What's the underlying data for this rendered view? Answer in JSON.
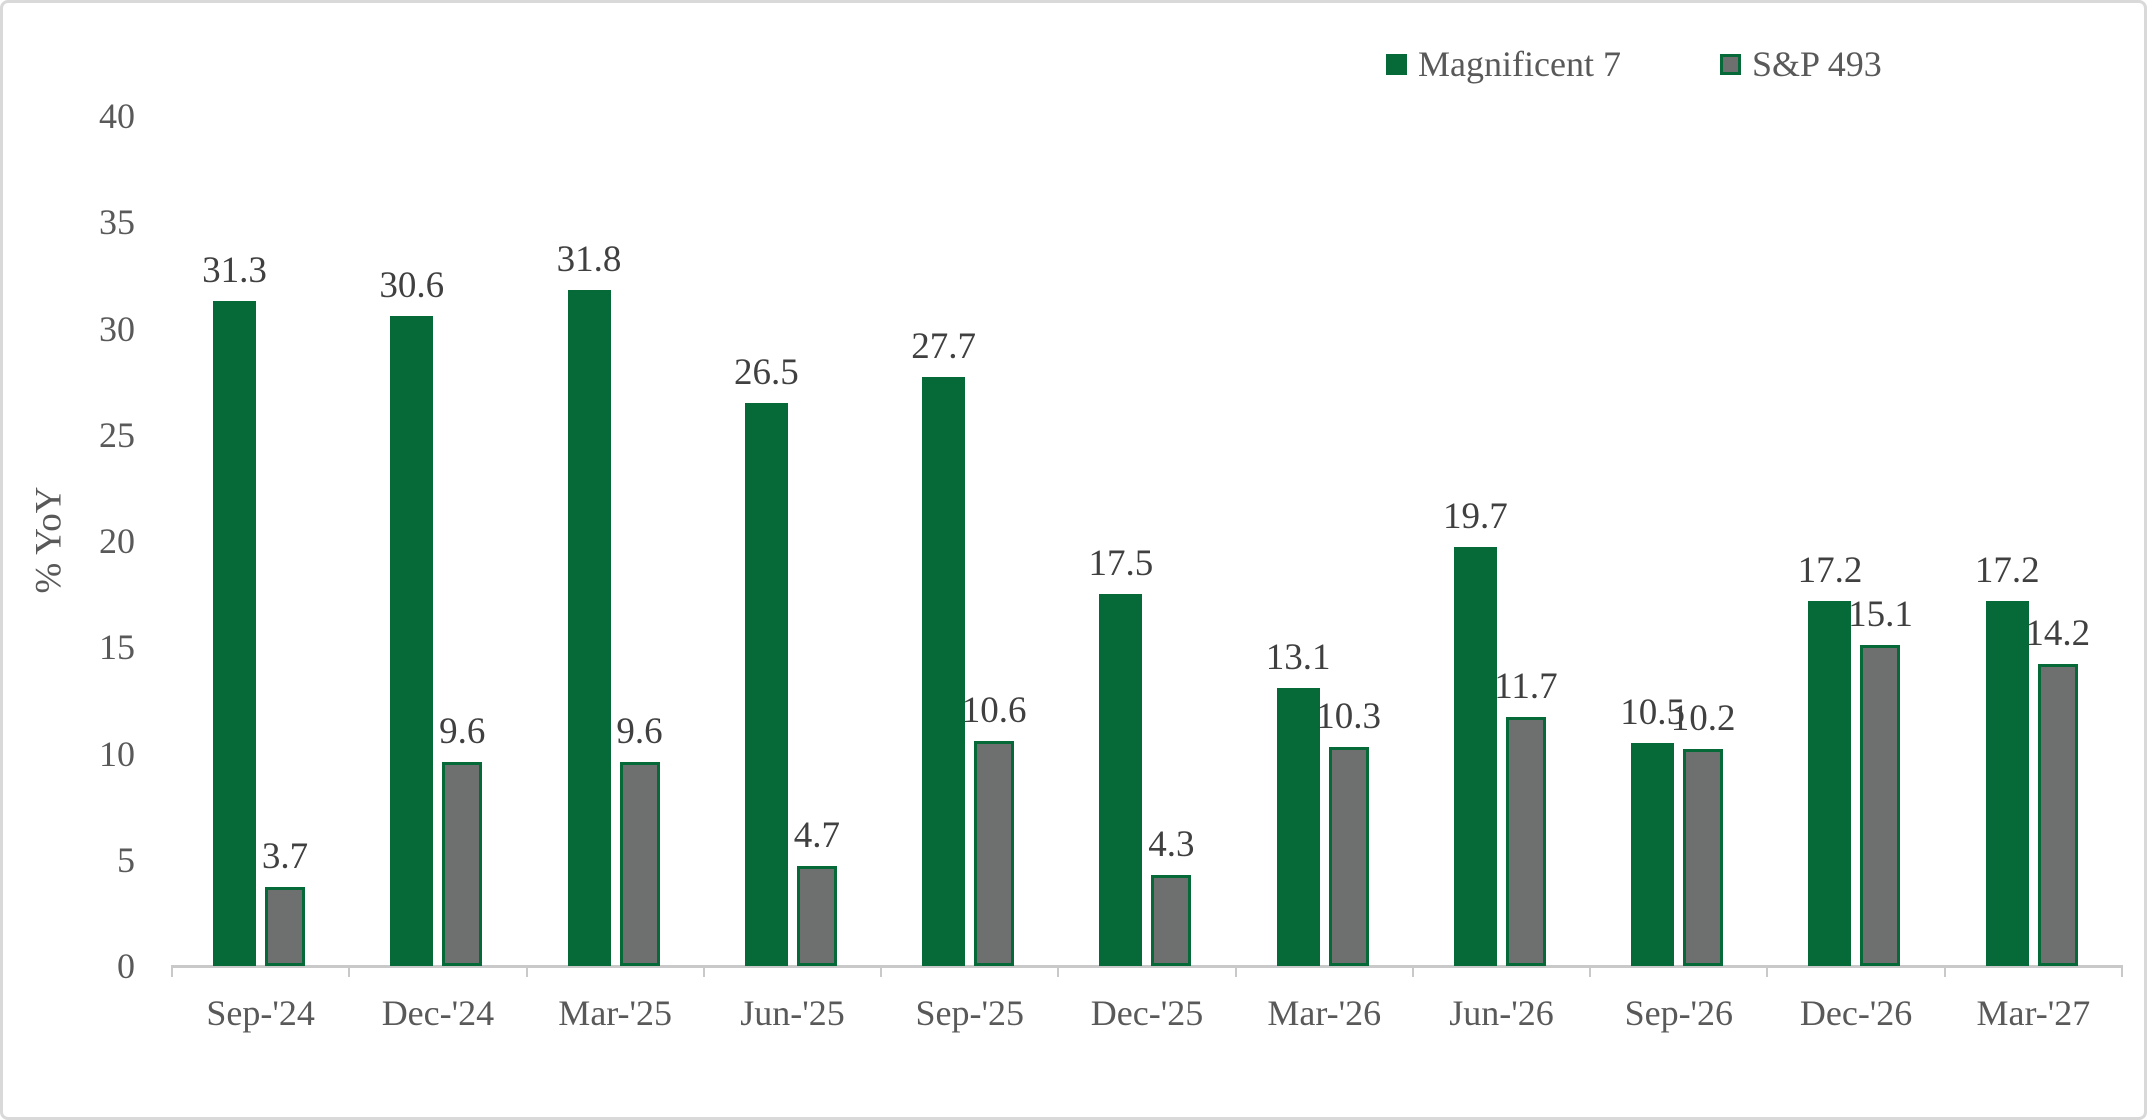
{
  "chart_data": {
    "type": "bar",
    "title": "",
    "categories": [
      "Sep-'24",
      "Dec-'24",
      "Mar-'25",
      "Jun-'25",
      "Sep-'25",
      "Dec-'25",
      "Mar-'26",
      "Jun-'26",
      "Sep-'26",
      "Dec-'26",
      "Mar-'27"
    ],
    "series": [
      {
        "name": "Magnificent 7",
        "color": "#066A38",
        "values": [
          31.3,
          30.6,
          31.8,
          26.5,
          27.7,
          17.5,
          13.1,
          19.7,
          10.5,
          17.2,
          17.2
        ]
      },
      {
        "name": "S&P 493",
        "color": "#6E706F",
        "border_color": "#066A38",
        "values": [
          3.7,
          9.6,
          9.6,
          4.7,
          10.6,
          4.3,
          10.3,
          11.7,
          10.2,
          15.1,
          14.2
        ]
      }
    ],
    "xlabel": "",
    "ylabel": "% YoY",
    "ylim": [
      0,
      40
    ],
    "ytick_step": 5,
    "yticks": [
      0,
      5,
      10,
      15,
      20,
      25,
      30,
      35,
      40
    ],
    "grid": false,
    "legend_position": "top-right",
    "data_labels": true
  },
  "colors": {
    "axis_text": "#595959",
    "data_label": "#404040",
    "axis_line": "#c9c9c9",
    "frame_border": "#d9d9d9",
    "background": "#ffffff"
  }
}
